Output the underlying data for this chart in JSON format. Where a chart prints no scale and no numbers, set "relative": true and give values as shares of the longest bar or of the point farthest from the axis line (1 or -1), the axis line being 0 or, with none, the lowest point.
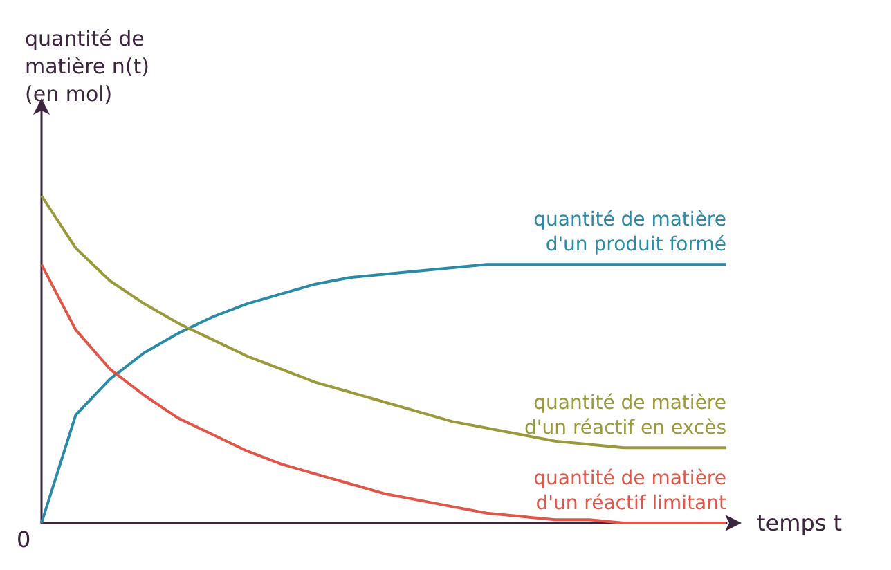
{
  "chart_data": {
    "type": "line",
    "relative": true,
    "ylabel": "quantité de matière n(t) (en mol)",
    "xlabel": "temps t",
    "annotations": [
      "0"
    ],
    "categories": [
      null,
      null,
      null,
      null,
      null,
      null,
      null,
      null,
      null,
      null,
      null,
      null,
      null,
      null,
      null,
      null,
      null,
      null,
      null,
      null,
      null
    ],
    "series": [
      {
        "name": "quantité de matière d'un produit formé",
        "color": "#2a8aa8",
        "values": [
          0,
          0.33,
          0.44,
          0.52,
          0.58,
          0.63,
          0.67,
          0.7,
          0.73,
          0.75,
          0.76,
          0.77,
          0.78,
          0.79,
          0.79,
          0.79,
          0.79,
          0.79,
          0.79,
          0.79,
          0.79
        ]
      },
      {
        "name": "quantité de matière d'un réactif en excès",
        "color": "#9a9a3c",
        "values": [
          1,
          0.84,
          0.74,
          0.67,
          0.61,
          0.56,
          0.51,
          0.47,
          0.43,
          0.4,
          0.37,
          0.34,
          0.31,
          0.29,
          0.27,
          0.25,
          0.24,
          0.23,
          0.23,
          0.23,
          0.23
        ]
      },
      {
        "name": "quantité de matière d'un réactif limitant",
        "color": "#e0574a",
        "values": [
          0.79,
          0.59,
          0.47,
          0.39,
          0.32,
          0.27,
          0.22,
          0.18,
          0.15,
          0.12,
          0.09,
          0.07,
          0.05,
          0.03,
          0.02,
          0.01,
          0.01,
          0,
          0,
          0,
          0
        ]
      }
    ],
    "legend": false,
    "grid": false,
    "marker": "none",
    "line_style": "solid"
  }
}
